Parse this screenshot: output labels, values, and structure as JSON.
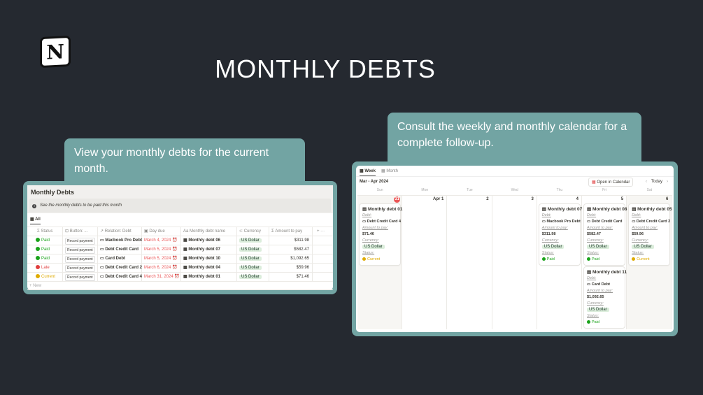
{
  "title": "MONTHLY DEBTS",
  "logo": "N",
  "callout_left": "View your monthly debts for the current month.",
  "callout_right": "Consult the weekly and monthly calendar for a complete follow-up.",
  "table": {
    "title": "Monthly Debts",
    "info": "See the monthly debts to be paid this month",
    "view_tab": "All",
    "columns": [
      "Status",
      "Button: ...",
      "Relation: Debt",
      "Day due",
      "Monthly debt name",
      "Currency",
      "Amount to pay"
    ],
    "rows": [
      {
        "status": "Paid",
        "status_color": "#1aa31a",
        "button": "Record payment",
        "debt": "Macbook Pro Debt",
        "due": "March 4, 2024",
        "name": "Monthly debt 06",
        "currency": "US Dollar",
        "amount": "$311.98"
      },
      {
        "status": "Paid",
        "status_color": "#1aa31a",
        "button": "Record payment",
        "debt": "Debt Credit Card",
        "due": "March 5, 2024",
        "name": "Monthly debt 07",
        "currency": "US Dollar",
        "amount": "$582.47"
      },
      {
        "status": "Paid",
        "status_color": "#1aa31a",
        "button": "Record payment",
        "debt": "Card Debt",
        "due": "March 5, 2024",
        "name": "Monthly debt 10",
        "currency": "US Dollar",
        "amount": "$1,092.65"
      },
      {
        "status": "Late",
        "status_color": "#e03e3e",
        "button": "Record payment",
        "debt": "Debt Credit Card 2",
        "due": "March 6, 2024",
        "name": "Monthly debt 04",
        "currency": "US Dollar",
        "amount": "$59.96"
      },
      {
        "status": "Current",
        "status_color": "#dfab01",
        "button": "Record payment",
        "debt": "Debt Credit Card 4",
        "due": "March 31, 2024",
        "name": "Monthly debt 01",
        "currency": "US Dollar",
        "amount": "$71.46"
      }
    ],
    "new_label": "+ New"
  },
  "calendar": {
    "tabs": [
      "Week",
      "Month"
    ],
    "range": "Mar - Apr 2024",
    "open_button": "Open in Calendar",
    "today": "Today",
    "days": [
      "Sun",
      "Mon",
      "Tue",
      "Wed",
      "Thu",
      "Fri",
      "Sat"
    ],
    "dates": [
      "31",
      "Apr 1",
      "2",
      "3",
      "4",
      "5",
      "6"
    ],
    "labels": {
      "debt": "Debt:",
      "amount": "Amount to pay:",
      "currency": "Currency:",
      "status": "Status:"
    },
    "cards": [
      {
        "day": 0,
        "name": "Monthly debt 01",
        "debt": "Debt Credit Card 4",
        "amount": "$71.46",
        "currency": "US Dollar",
        "status": "Current",
        "status_color": "#dfab01"
      },
      {
        "day": 4,
        "name": "Monthly debt 07",
        "debt": "Macbook Pro Debt",
        "amount": "$311.98",
        "currency": "US Dollar",
        "status": "Paid",
        "status_color": "#1aa31a"
      },
      {
        "day": 5,
        "name": "Monthly debt 08",
        "debt": "Debt Credit Card",
        "amount": "$582.47",
        "currency": "US Dollar",
        "status": "Paid",
        "status_color": "#1aa31a"
      },
      {
        "day": 6,
        "name": "Monthly debt 05",
        "debt": "Debt Credit Card 2",
        "amount": "$59.96",
        "currency": "US Dollar",
        "status": "Current",
        "status_color": "#dfab01"
      },
      {
        "day": 5,
        "name": "Monthly debt 11",
        "debt": "Card Debt",
        "amount": "$1,092.65",
        "currency": "US Dollar",
        "status": "Paid",
        "status_color": "#1aa31a"
      }
    ]
  }
}
